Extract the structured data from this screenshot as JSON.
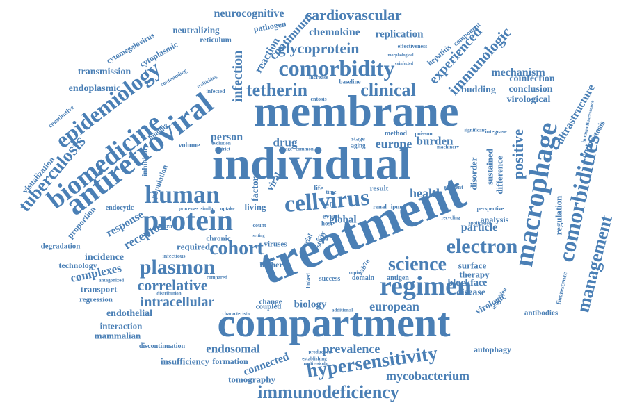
{
  "color": "#4a7fb5",
  "words": {
    "membrane": "membrane",
    "individual": "individual",
    "treatment": "treatment",
    "compartment": "compartment",
    "antiretroviral": "antiretroviral",
    "biomedicine": "biomedicine",
    "epidemiology": "epidemiology",
    "macrophage": "macrophage",
    "comorbidities": "comorbidities",
    "management": "management",
    "protein": "protein",
    "human": "human",
    "cellvirus": "cellvirus",
    "comorbidity": "comorbidity",
    "tetherin": "tetherin",
    "clinical": "clinical",
    "regimen": "regimen",
    "electron": "electron",
    "science": "science",
    "plasmon": "plasmon",
    "cohort": "cohort",
    "correlative": "correlative",
    "intracellular": "intracellular",
    "hypersensitivity": "hypersensitivity",
    "immunodeficiency": "immunodeficiency",
    "mycobacterium": "mycobacterium",
    "prevalence": "prevalence",
    "european": "european",
    "biology": "biology",
    "tuberculosis": "tuberculosis",
    "glycoprotein": "glycoprotein",
    "cardiovascular": "cardiovascular",
    "neurocognitive": "neurocognitive",
    "chemokine": "chemokine",
    "replication": "replication",
    "immunologic": "immunologic",
    "experienced": "experienced",
    "continuum": "continuum",
    "infection": "infection",
    "reaction": "reaction",
    "neutralizing": "neutralizing",
    "pathogen": "pathogen",
    "reticulum": "reticulum",
    "cytoplasmic": "cytoplasmic",
    "cytomegalovirus": "cytomegalovirus",
    "transmission": "transmission",
    "endoplasmic": "endoplasmic",
    "receptor": "receptor",
    "response": "response",
    "positive": "positive",
    "mechanism": "mechanism",
    "coinfection": "coinfection",
    "budding": "budding",
    "conclusion": "conclusion",
    "virological": "virological",
    "ultrastructure": "ultrastructure",
    "regulation": "regulation",
    "endocytosis": "endocytosis",
    "antibodies": "antibodies",
    "complexes": "complexes",
    "incidence": "incidence",
    "technology": "technology",
    "degradation": "degradation",
    "transport": "transport",
    "regression": "regression",
    "endothelial": "endothelial",
    "interaction": "interaction",
    "mammalian": "mammalian",
    "insufficiency": "insufficiency",
    "formation": "formation",
    "endosomal": "endosomal",
    "connected": "connected",
    "tomography": "tomography",
    "autophagy": "autophagy",
    "blockface": "blockface",
    "disease": "disease",
    "virologic": "virologic",
    "surface": "surface",
    "therapy": "therapy",
    "particle": "particle",
    "analysis": "analysis",
    "health": "health",
    "europe": "europe",
    "burden": "burden",
    "drug": "drug",
    "person": "person",
    "required": "required",
    "chronic": "chronic",
    "viruses": "viruses",
    "higher": "higher",
    "global": "global",
    "event": "event",
    "living": "living",
    "factor": "factor",
    "viral": "viral",
    "visualization": "visualization",
    "sustained": "sustained",
    "disorder": "disorder",
    "difference": "difference",
    "antigen": "antigen",
    "domain": "domain",
    "success": "success",
    "change": "change",
    "coupled": "coupled",
    "discontinuation": "discontinuation",
    "proportion": "proportion",
    "population": "population",
    "inhibitor": "inhibitor",
    "volume": "volume",
    "binding": "binding",
    "constitutive": "constitutive",
    "hepatitis": "hepatitis",
    "component": "component",
    "effectiveness": "effectiveness",
    "baseline": "baseline",
    "entosis": "entosis",
    "increase": "increase",
    "infected": "infected",
    "confounding": "confounding",
    "method": "method",
    "aging": "aging",
    "stage": "stage",
    "image": "image",
    "common": "common",
    "life": "life",
    "time": "time",
    "result": "result",
    "renal": "renal",
    "ipmcs": "ipmcs",
    "pyfu": "pyfu",
    "host": "host",
    "serial": "serial",
    "study": "study",
    "data": "data",
    "count": "count",
    "infectious": "infectious",
    "pattern": "pattern",
    "endocytic": "endocytic",
    "antagonized": "antagonized",
    "compared": "compared",
    "distribution": "distribution",
    "establishing": "establishing",
    "production": "production",
    "multivesicular": "multivesicular",
    "additional": "additional",
    "linked": "linked",
    "copies": "copies",
    "rab7a": "rab7a",
    "integrase": "integrase",
    "significant": "significant",
    "machinery": "machinery",
    "poisson": "poisson",
    "efficient": "efficient",
    "perspective": "perspective",
    "fluorescence": "fluorescence",
    "immunofluorescence": "immunofluorescence",
    "utilization": "utilization",
    "characteristic": "characteristic",
    "setting": "setting",
    "recycling": "recycling",
    "application": "application",
    "processes": "processes",
    "similar": "similar",
    "uptake": "uptake",
    "evolution": "evolution",
    "restrict": "restrict",
    "trafficking": "trafficking",
    "morphological": "morphological",
    "coinfected": "coinfected"
  }
}
